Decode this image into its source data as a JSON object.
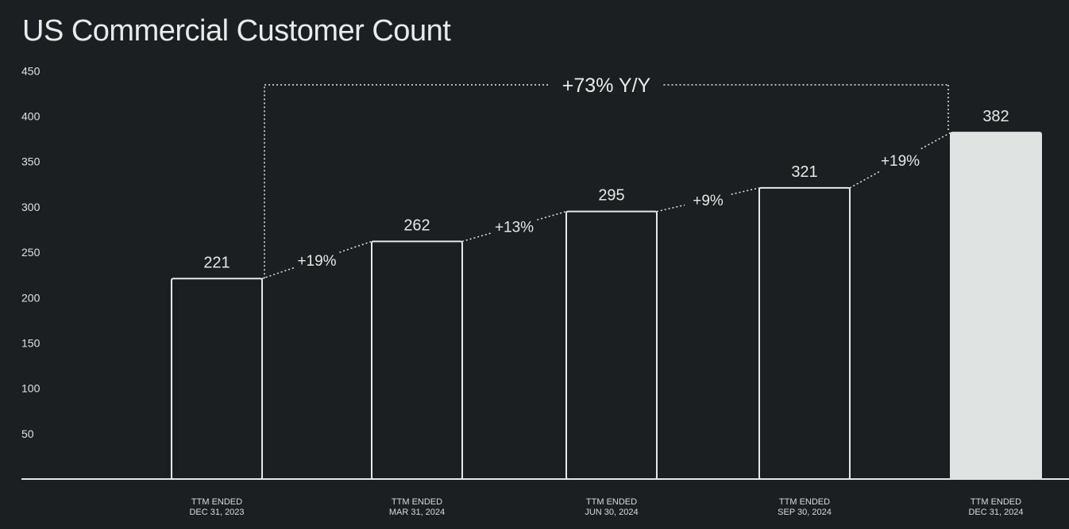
{
  "chart_data": {
    "type": "bar",
    "title": "US Commercial Customer Count",
    "categories": [
      [
        "TTM ENDED",
        "DEC 31, 2023"
      ],
      [
        "TTM ENDED",
        "MAR 31, 2024"
      ],
      [
        "TTM ENDED",
        "JUN 30, 2024"
      ],
      [
        "TTM ENDED",
        "SEP 30, 2024"
      ],
      [
        "TTM ENDED",
        "DEC 31, 2024"
      ]
    ],
    "values": [
      221,
      262,
      295,
      321,
      382
    ],
    "value_labels": [
      "221",
      "262",
      "295",
      "321",
      "382"
    ],
    "growth_labels": [
      "+19%",
      "+13%",
      "+9%",
      "+19%"
    ],
    "yoy_label": "+73% Y/Y",
    "ylim": [
      0,
      450
    ],
    "yticks": [
      50,
      100,
      150,
      200,
      250,
      300,
      350,
      400,
      450
    ],
    "highlight_index": 4,
    "xlabel": "",
    "ylabel": "",
    "colors": {
      "background": "#1c1f21",
      "outline": "#e6e8e7",
      "highlight_fill": "#dfe3e1",
      "text": "#e6e8e7"
    }
  }
}
